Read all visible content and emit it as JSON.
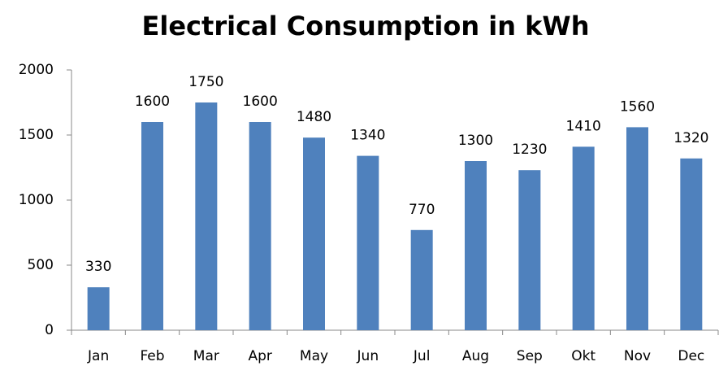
{
  "chart_data": {
    "type": "bar",
    "title": "Electrical Consumption in kWh",
    "categories": [
      "Jan",
      "Feb",
      "Mar",
      "Apr",
      "May",
      "Jun",
      "Jul",
      "Aug",
      "Sep",
      "Okt",
      "Nov",
      "Dec"
    ],
    "values": [
      330,
      1600,
      1750,
      1600,
      1480,
      1340,
      770,
      1300,
      1230,
      1410,
      1560,
      1320
    ],
    "color": "#4f81bd",
    "ylim": [
      0,
      2000
    ],
    "yticks": [
      0,
      500,
      1000,
      1500,
      2000
    ],
    "grid": false
  }
}
